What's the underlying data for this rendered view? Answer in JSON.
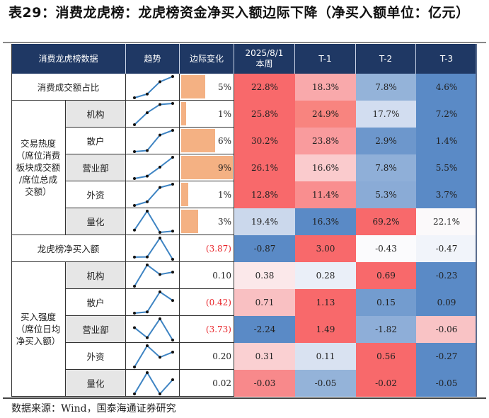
{
  "title": "表29：消费龙虎榜：龙虎榜资金净买入额边际下降（净买入额单位：亿元）",
  "source": "数据来源：Wind，国泰海通证券研究",
  "header": {
    "col_data": "消费龙虎榜数据",
    "col_trend": "趋势",
    "col_margin": "边际变化",
    "col_current_line1": "2025/8/1",
    "col_current_line2": "本周",
    "col_t1": "T-1",
    "col_t2": "T-2",
    "col_t3": "T-3"
  },
  "groups": {
    "heat": "交易热度（席位消费板块成交额/席位总成交额）",
    "heat_lines": [
      "交易热度",
      "（席位消费",
      "板块成交额",
      "/席位总成",
      "交额）"
    ],
    "buy": "买入强度（席位日均净买入额）",
    "buy_lines": [
      "买入强度",
      "（席位日均",
      "净买入额）"
    ]
  },
  "rows": [
    {
      "label": "消费成交额占比",
      "margin": "5%",
      "margin_bar": 0.46,
      "margin_negative": false,
      "values": [
        "22.8%",
        "18.3%",
        "7.8%",
        "4.6%"
      ],
      "colors": [
        "#f8696b",
        "#f9a9ab",
        "#94b3d9",
        "#5a8ac6"
      ],
      "trend": [
        4.6,
        7.8,
        18.3,
        22.8
      ]
    },
    {
      "label": "机构",
      "margin": "1%",
      "margin_bar": 0.09,
      "margin_negative": false,
      "values": [
        "25.8%",
        "24.9%",
        "17.7%",
        "7.2%"
      ],
      "colors": [
        "#f8696b",
        "#f8847f",
        "#d2ddf0",
        "#5a8ac6"
      ],
      "trend": [
        7.2,
        17.7,
        24.9,
        25.8
      ]
    },
    {
      "label": "散户",
      "margin": "6%",
      "margin_bar": 0.66,
      "margin_negative": false,
      "values": [
        "30.2%",
        "23.8%",
        "2.9%",
        "1.4%"
      ],
      "colors": [
        "#f8696b",
        "#f99b9d",
        "#6d97cc",
        "#5a8ac6"
      ],
      "trend": [
        1.4,
        2.9,
        23.8,
        30.2
      ]
    },
    {
      "label": "营业部",
      "margin": "9%",
      "margin_bar": 1.0,
      "margin_negative": false,
      "values": [
        "26.1%",
        "16.6%",
        "7.8%",
        "5.5%"
      ],
      "colors": [
        "#f8696b",
        "#facbcd",
        "#8fafd8",
        "#5a8ac6"
      ],
      "trend": [
        5.5,
        7.8,
        16.6,
        26.1
      ]
    },
    {
      "label": "外资",
      "margin": "1%",
      "margin_bar": 0.14,
      "margin_negative": false,
      "values": [
        "12.8%",
        "11.4%",
        "5.3%",
        "3.7%"
      ],
      "colors": [
        "#f8696b",
        "#f98e8f",
        "#8aabd6",
        "#5a8ac6"
      ],
      "trend": [
        3.7,
        5.3,
        11.4,
        12.8
      ]
    },
    {
      "label": "量化",
      "margin": "3%",
      "margin_bar": 0.33,
      "margin_negative": false,
      "values": [
        "19.4%",
        "16.3%",
        "69.2%",
        "22.1%"
      ],
      "colors": [
        "#cbd8ec",
        "#5a8ac6",
        "#f8696b",
        "#fbf9fa"
      ],
      "trend": [
        22.1,
        69.2,
        16.3,
        19.4
      ]
    },
    {
      "label": "龙虎榜净买入额",
      "margin": "(3.87)",
      "margin_bar": 0,
      "margin_negative": true,
      "values": [
        "-0.87",
        "3.00",
        "-0.43",
        "-0.47"
      ],
      "colors": [
        "#5a8ac6",
        "#f8696b",
        "#fbfbfd",
        "#f1f4fa"
      ],
      "trend": [
        -0.47,
        -0.43,
        3.0,
        -0.87
      ]
    },
    {
      "label": "机构",
      "margin": "0.10",
      "margin_bar": 0,
      "margin_negative": false,
      "values": [
        "0.38",
        "0.28",
        "0.69",
        "-0.23"
      ],
      "colors": [
        "#fbe8ea",
        "#eaeff8",
        "#f8696b",
        "#5a8ac6"
      ],
      "trend": [
        -0.23,
        0.69,
        0.28,
        0.38
      ]
    },
    {
      "label": "散户",
      "margin": "(0.42)",
      "margin_bar": 0,
      "margin_negative": true,
      "values": [
        "0.71",
        "1.13",
        "0.15",
        "0.09"
      ],
      "colors": [
        "#f9c0c2",
        "#f8696b",
        "#739ccf",
        "#5a8ac6"
      ],
      "trend": [
        0.09,
        0.15,
        1.13,
        0.71
      ]
    },
    {
      "label": "营业部",
      "margin": "(3.73)",
      "margin_bar": 0,
      "margin_negative": true,
      "values": [
        "-2.24",
        "1.49",
        "-1.82",
        "-0.06"
      ],
      "colors": [
        "#5a8ac6",
        "#f8696b",
        "#8eaed8",
        "#f9c3c5"
      ],
      "trend": [
        -0.06,
        -1.82,
        1.49,
        -2.24
      ]
    },
    {
      "label": "外资",
      "margin": "0.20",
      "margin_bar": 0,
      "margin_negative": false,
      "values": [
        "0.31",
        "0.11",
        "0.56",
        "-0.27"
      ],
      "colors": [
        "#fad0d2",
        "#d9e2f1",
        "#f8696b",
        "#5a8ac6"
      ],
      "trend": [
        -0.27,
        0.56,
        0.11,
        0.31
      ]
    },
    {
      "label": "量化",
      "margin": "0.02",
      "margin_bar": 0,
      "margin_negative": false,
      "values": [
        "-0.03",
        "-0.05",
        "-0.02",
        "-0.05"
      ],
      "colors": [
        "#f8898b",
        "#94b3d9",
        "#f8696b",
        "#5a8ac6"
      ],
      "trend": [
        -0.05,
        -0.02,
        -0.05,
        -0.03
      ]
    }
  ],
  "colors": {
    "header_bg": "#1f3864",
    "bar": "#f4b183",
    "negative_text": "#e8252a",
    "sparkline": "#3e84c3",
    "sub_label_bg": "#e6e6e6"
  }
}
